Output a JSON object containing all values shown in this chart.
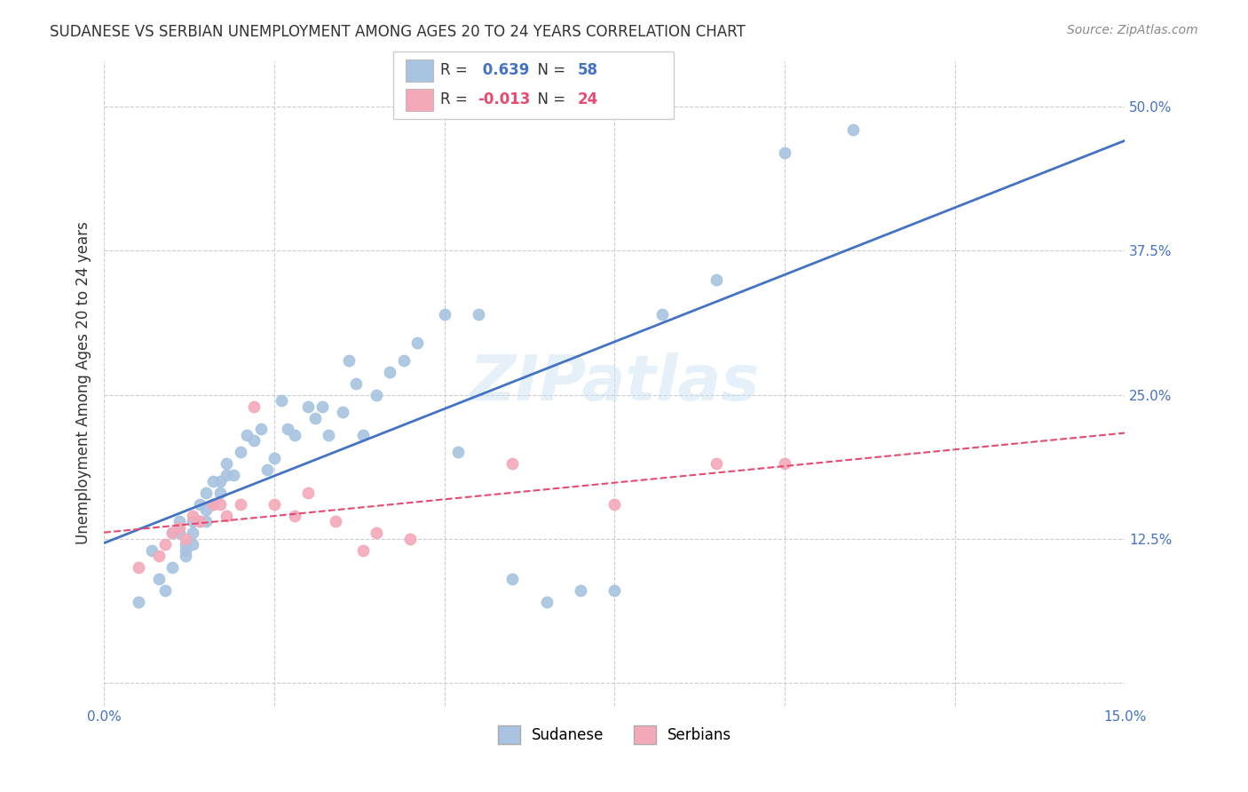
{
  "title": "SUDANESE VS SERBIAN UNEMPLOYMENT AMONG AGES 20 TO 24 YEARS CORRELATION CHART",
  "source": "Source: ZipAtlas.com",
  "ylabel": "Unemployment Among Ages 20 to 24 years",
  "xlim": [
    0.0,
    0.15
  ],
  "ylim": [
    -0.02,
    0.54
  ],
  "yticks": [
    0.0,
    0.125,
    0.25,
    0.375,
    0.5
  ],
  "ytick_labels": [
    "",
    "12.5%",
    "25.0%",
    "37.5%",
    "50.0%"
  ],
  "xticks": [
    0.0,
    0.025,
    0.05,
    0.075,
    0.1,
    0.125,
    0.15
  ],
  "xtick_labels": [
    "0.0%",
    "",
    "",
    "",
    "",
    "",
    "15.0%"
  ],
  "sudanese_R": 0.639,
  "sudanese_N": 58,
  "serbian_R": -0.013,
  "serbian_N": 24,
  "sudanese_color": "#a8c4e0",
  "serbian_color": "#f4a9b8",
  "sudanese_line_color": "#4472c4",
  "serbian_line_color": "#e84a6f",
  "watermark": "ZIPatlas",
  "sudanese_x": [
    0.005,
    0.007,
    0.008,
    0.009,
    0.01,
    0.01,
    0.011,
    0.011,
    0.012,
    0.012,
    0.012,
    0.013,
    0.013,
    0.013,
    0.014,
    0.014,
    0.015,
    0.015,
    0.015,
    0.016,
    0.016,
    0.017,
    0.017,
    0.018,
    0.018,
    0.019,
    0.02,
    0.021,
    0.022,
    0.023,
    0.024,
    0.025,
    0.026,
    0.027,
    0.028,
    0.03,
    0.031,
    0.032,
    0.033,
    0.035,
    0.036,
    0.037,
    0.038,
    0.04,
    0.042,
    0.044,
    0.046,
    0.05,
    0.052,
    0.055,
    0.06,
    0.065,
    0.07,
    0.075,
    0.082,
    0.09,
    0.1,
    0.11
  ],
  "sudanese_y": [
    0.07,
    0.115,
    0.09,
    0.08,
    0.13,
    0.1,
    0.14,
    0.13,
    0.12,
    0.115,
    0.11,
    0.14,
    0.13,
    0.12,
    0.155,
    0.14,
    0.15,
    0.14,
    0.165,
    0.155,
    0.175,
    0.165,
    0.175,
    0.18,
    0.19,
    0.18,
    0.2,
    0.215,
    0.21,
    0.22,
    0.185,
    0.195,
    0.245,
    0.22,
    0.215,
    0.24,
    0.23,
    0.24,
    0.215,
    0.235,
    0.28,
    0.26,
    0.215,
    0.25,
    0.27,
    0.28,
    0.295,
    0.32,
    0.2,
    0.32,
    0.09,
    0.07,
    0.08,
    0.08,
    0.32,
    0.35,
    0.46,
    0.48
  ],
  "serbian_x": [
    0.005,
    0.008,
    0.009,
    0.01,
    0.011,
    0.012,
    0.013,
    0.014,
    0.016,
    0.017,
    0.018,
    0.02,
    0.022,
    0.025,
    0.028,
    0.03,
    0.034,
    0.038,
    0.04,
    0.045,
    0.06,
    0.075,
    0.09,
    0.1
  ],
  "serbian_y": [
    0.1,
    0.11,
    0.12,
    0.13,
    0.135,
    0.125,
    0.145,
    0.14,
    0.155,
    0.155,
    0.145,
    0.155,
    0.24,
    0.155,
    0.145,
    0.165,
    0.14,
    0.115,
    0.13,
    0.125,
    0.19,
    0.155,
    0.19,
    0.19
  ],
  "background_color": "#ffffff",
  "grid_color": "#cccccc"
}
